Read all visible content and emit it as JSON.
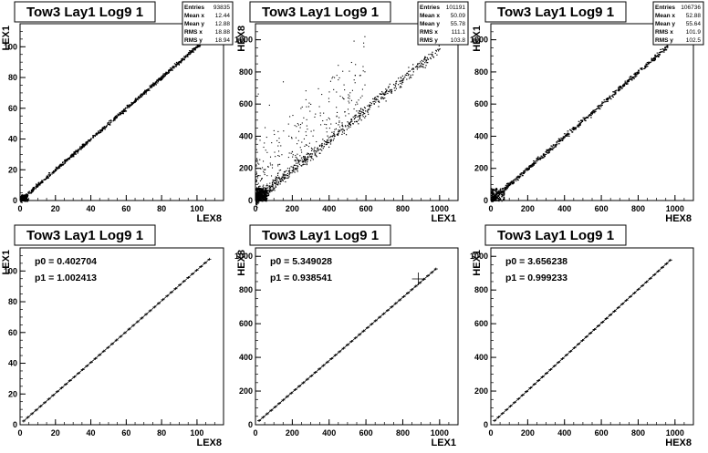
{
  "chart_data": [
    {
      "type": "scatter",
      "title": "Tow3 Lay1 Log9 1",
      "xlabel": "LEX8",
      "ylabel": "LEX1",
      "xlim": [
        0,
        115
      ],
      "ylim": [
        0,
        115
      ],
      "xticks": [
        0,
        20,
        40,
        60,
        80,
        100
      ],
      "yticks": [
        0,
        20,
        40,
        60,
        80,
        100
      ],
      "stats": [
        {
          "label": "Entries",
          "value": "93835"
        },
        {
          "label": "Mean x",
          "value": "12.44"
        },
        {
          "label": "Mean y",
          "value": "12.88"
        },
        {
          "label": "RMS x",
          "value": "18.88"
        },
        {
          "label": "RMS y",
          "value": "18.94"
        }
      ],
      "relation": {
        "slope": 1.0024,
        "intercept": 0.4
      },
      "scatter": "tight"
    },
    {
      "type": "scatter",
      "title": "Tow3 Lay1 Log9 1",
      "xlabel": "LEX1",
      "ylabel": "HEX8",
      "xlim": [
        0,
        1100
      ],
      "ylim": [
        0,
        1100
      ],
      "xticks": [
        0,
        200,
        400,
        600,
        800,
        1000
      ],
      "yticks": [
        0,
        200,
        400,
        600,
        800,
        1000
      ],
      "stats": [
        {
          "label": "Entries",
          "value": "101191"
        },
        {
          "label": "Mean x",
          "value": "50.09"
        },
        {
          "label": "Mean y",
          "value": "55.78"
        },
        {
          "label": "RMS x",
          "value": "111.1"
        },
        {
          "label": "RMS y",
          "value": "103.8"
        }
      ],
      "relation": {
        "slope": 0.94,
        "intercept": 5.3
      },
      "scatter": "wide"
    },
    {
      "type": "scatter",
      "title": "Tow3 Lay1 Log9 1",
      "xlabel": "HEX8",
      "ylabel": "HEX1",
      "xlim": [
        0,
        1100
      ],
      "ylim": [
        0,
        1100
      ],
      "xticks": [
        0,
        200,
        400,
        600,
        800,
        1000
      ],
      "yticks": [
        0,
        200,
        400,
        600,
        800,
        1000
      ],
      "stats": [
        {
          "label": "Entries",
          "value": "106736"
        },
        {
          "label": "Mean x",
          "value": "52.88"
        },
        {
          "label": "Mean y",
          "value": "55.64"
        },
        {
          "label": "RMS x",
          "value": "101.9"
        },
        {
          "label": "RMS y",
          "value": "102.5"
        }
      ],
      "relation": {
        "slope": 1.0,
        "intercept": 3.6
      },
      "scatter": "stepped"
    },
    {
      "type": "line",
      "title": "Tow3 Lay1 Log9 1",
      "xlabel": "LEX8",
      "ylabel": "LEX1",
      "xlim": [
        0,
        115
      ],
      "ylim": [
        0,
        115
      ],
      "xticks": [
        0,
        20,
        40,
        60,
        80,
        100
      ],
      "yticks": [
        0,
        20,
        40,
        60,
        80,
        100
      ],
      "fit": [
        {
          "name": "p0",
          "value": "0.402704"
        },
        {
          "name": "p1",
          "value": "1.002413"
        }
      ],
      "relation": {
        "slope": 1.002413,
        "intercept": 0.402704
      },
      "x_range": [
        2,
        107
      ],
      "n_points": 45
    },
    {
      "type": "line",
      "title": "Tow3 Lay1 Log9 1",
      "xlabel": "LEX1",
      "ylabel": "HEX8",
      "xlim": [
        0,
        1100
      ],
      "ylim": [
        0,
        1050
      ],
      "xticks": [
        0,
        200,
        400,
        600,
        800,
        1000
      ],
      "yticks": [
        0,
        200,
        400,
        600,
        800,
        1000
      ],
      "fit": [
        {
          "name": "p0",
          "value": "5.349028"
        },
        {
          "name": "p1",
          "value": "0.938541"
        }
      ],
      "relation": {
        "slope": 0.938541,
        "intercept": 5.349028
      },
      "x_range": [
        20,
        980
      ],
      "n_points": 45
    },
    {
      "type": "line",
      "title": "Tow3 Lay1 Log9 1",
      "xlabel": "HEX8",
      "ylabel": "HEX1",
      "xlim": [
        0,
        1100
      ],
      "ylim": [
        0,
        1050
      ],
      "xticks": [
        0,
        200,
        400,
        600,
        800,
        1000
      ],
      "yticks": [
        0,
        200,
        400,
        600,
        800,
        1000
      ],
      "fit": [
        {
          "name": "p0",
          "value": "3.656238"
        },
        {
          "name": "p1",
          "value": "0.999233"
        }
      ],
      "relation": {
        "slope": 0.999233,
        "intercept": 3.656238
      },
      "x_range": [
        20,
        975
      ],
      "n_points": 45
    }
  ]
}
